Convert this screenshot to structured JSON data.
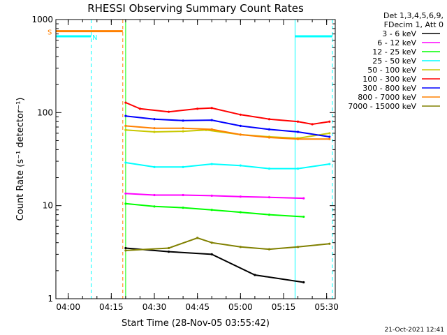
{
  "chart_data": {
    "type": "line",
    "title": "RHESSI Observing Summary Count Rates",
    "xlabel": "Start Time (28-Nov-05 03:55:42)",
    "ylabel": "Count Rate (s⁻¹ detector⁻¹)",
    "y_scale": "log",
    "ylim": [
      1,
      1000
    ],
    "y_ticks": [
      "1",
      "10",
      "100",
      "1000"
    ],
    "xlim": [
      "03:55:42",
      "05:33:00"
    ],
    "x_ticks": [
      "04:00",
      "04:15",
      "04:30",
      "04:45",
      "05:00",
      "05:15",
      "05:30"
    ],
    "grid": false,
    "legend_header": [
      "Det 1,3,4,5,6,9,",
      "FDecim 1, Att 0"
    ],
    "legend_placement": "right",
    "timestamp": "21-Oct-2021 12:41",
    "series": [
      {
        "name": "3 - 6 keV",
        "color": "#000000",
        "x": [
          "04:20",
          "04:35",
          "04:50",
          "05:05",
          "05:22"
        ],
        "y": [
          3.5,
          3.2,
          3.0,
          1.8,
          1.5
        ]
      },
      {
        "name": "6 - 12 keV",
        "color": "#ff00ff",
        "x": [
          "04:20",
          "04:30",
          "04:40",
          "04:50",
          "05:00",
          "05:10",
          "05:22"
        ],
        "y": [
          13.5,
          13.0,
          13.0,
          12.8,
          12.5,
          12.3,
          12.0
        ]
      },
      {
        "name": "12 - 25 keV",
        "color": "#00ff00",
        "x": [
          "04:20",
          "04:30",
          "04:40",
          "04:50",
          "05:00",
          "05:10",
          "05:22"
        ],
        "y": [
          10.5,
          9.8,
          9.5,
          9.0,
          8.5,
          8.0,
          7.6
        ]
      },
      {
        "name": "25 - 50 keV",
        "color": "#00ffff",
        "x": [
          "04:20",
          "04:30",
          "04:40",
          "04:50",
          "05:00",
          "05:10",
          "05:20",
          "05:31"
        ],
        "y": [
          29,
          26,
          26,
          28,
          27,
          25,
          25,
          28
        ]
      },
      {
        "name": "50 - 100 keV",
        "color": "#c8c800",
        "x": [
          "04:20",
          "04:30",
          "04:40",
          "04:48",
          "05:00",
          "05:10",
          "05:20",
          "05:31"
        ],
        "y": [
          65,
          62,
          63,
          65,
          58,
          55,
          53,
          60
        ]
      },
      {
        "name": "100 - 300 keV",
        "color": "#ff0000",
        "x": [
          "04:20",
          "04:25",
          "04:35",
          "04:45",
          "04:50",
          "05:00",
          "05:10",
          "05:20",
          "05:25",
          "05:31"
        ],
        "y": [
          128,
          110,
          102,
          110,
          112,
          95,
          85,
          80,
          75,
          80
        ]
      },
      {
        "name": "300 - 800 keV",
        "color": "#0000ff",
        "x": [
          "04:20",
          "04:30",
          "04:40",
          "04:50",
          "05:00",
          "05:10",
          "05:20",
          "05:31"
        ],
        "y": [
          92,
          85,
          82,
          83,
          72,
          66,
          62,
          55
        ]
      },
      {
        "name": "800 - 7000 keV",
        "color": "#ff8000",
        "x": [
          "04:20",
          "04:30",
          "04:40",
          "04:50",
          "05:00",
          "05:10",
          "05:20",
          "05:31"
        ],
        "y": [
          72,
          68,
          68,
          66,
          58,
          54,
          52,
          52
        ]
      },
      {
        "name": "7000 - 15000 keV",
        "color": "#808000",
        "x": [
          "04:20",
          "04:35",
          "04:45",
          "04:50",
          "05:00",
          "05:10",
          "05:20",
          "05:31"
        ],
        "y": [
          3.3,
          3.5,
          4.5,
          4.0,
          3.6,
          3.4,
          3.6,
          3.9
        ]
      }
    ],
    "flags": [
      {
        "label": "S",
        "color": "#ff8000",
        "x": [
          "03:55:42",
          "04:19"
        ],
        "y": 750
      },
      {
        "label": "N",
        "color": "#00ffff",
        "x": [
          "03:55:42",
          "04:08"
        ],
        "y": 660
      },
      {
        "label": "",
        "color": "#00ffff",
        "x": [
          "05:19",
          "05:32"
        ],
        "y": 660
      }
    ],
    "vertical_markers": [
      {
        "x": "04:08",
        "color": "#00ffff",
        "style": "dashed"
      },
      {
        "x": "04:19",
        "color": "#ff8000",
        "style": "dashed"
      },
      {
        "x": "04:20",
        "color": "#00ff00",
        "style": "solid"
      },
      {
        "x": "05:19",
        "color": "#00ffff",
        "style": "solid"
      },
      {
        "x": "05:32",
        "color": "#00ffff",
        "style": "dashed"
      }
    ]
  }
}
